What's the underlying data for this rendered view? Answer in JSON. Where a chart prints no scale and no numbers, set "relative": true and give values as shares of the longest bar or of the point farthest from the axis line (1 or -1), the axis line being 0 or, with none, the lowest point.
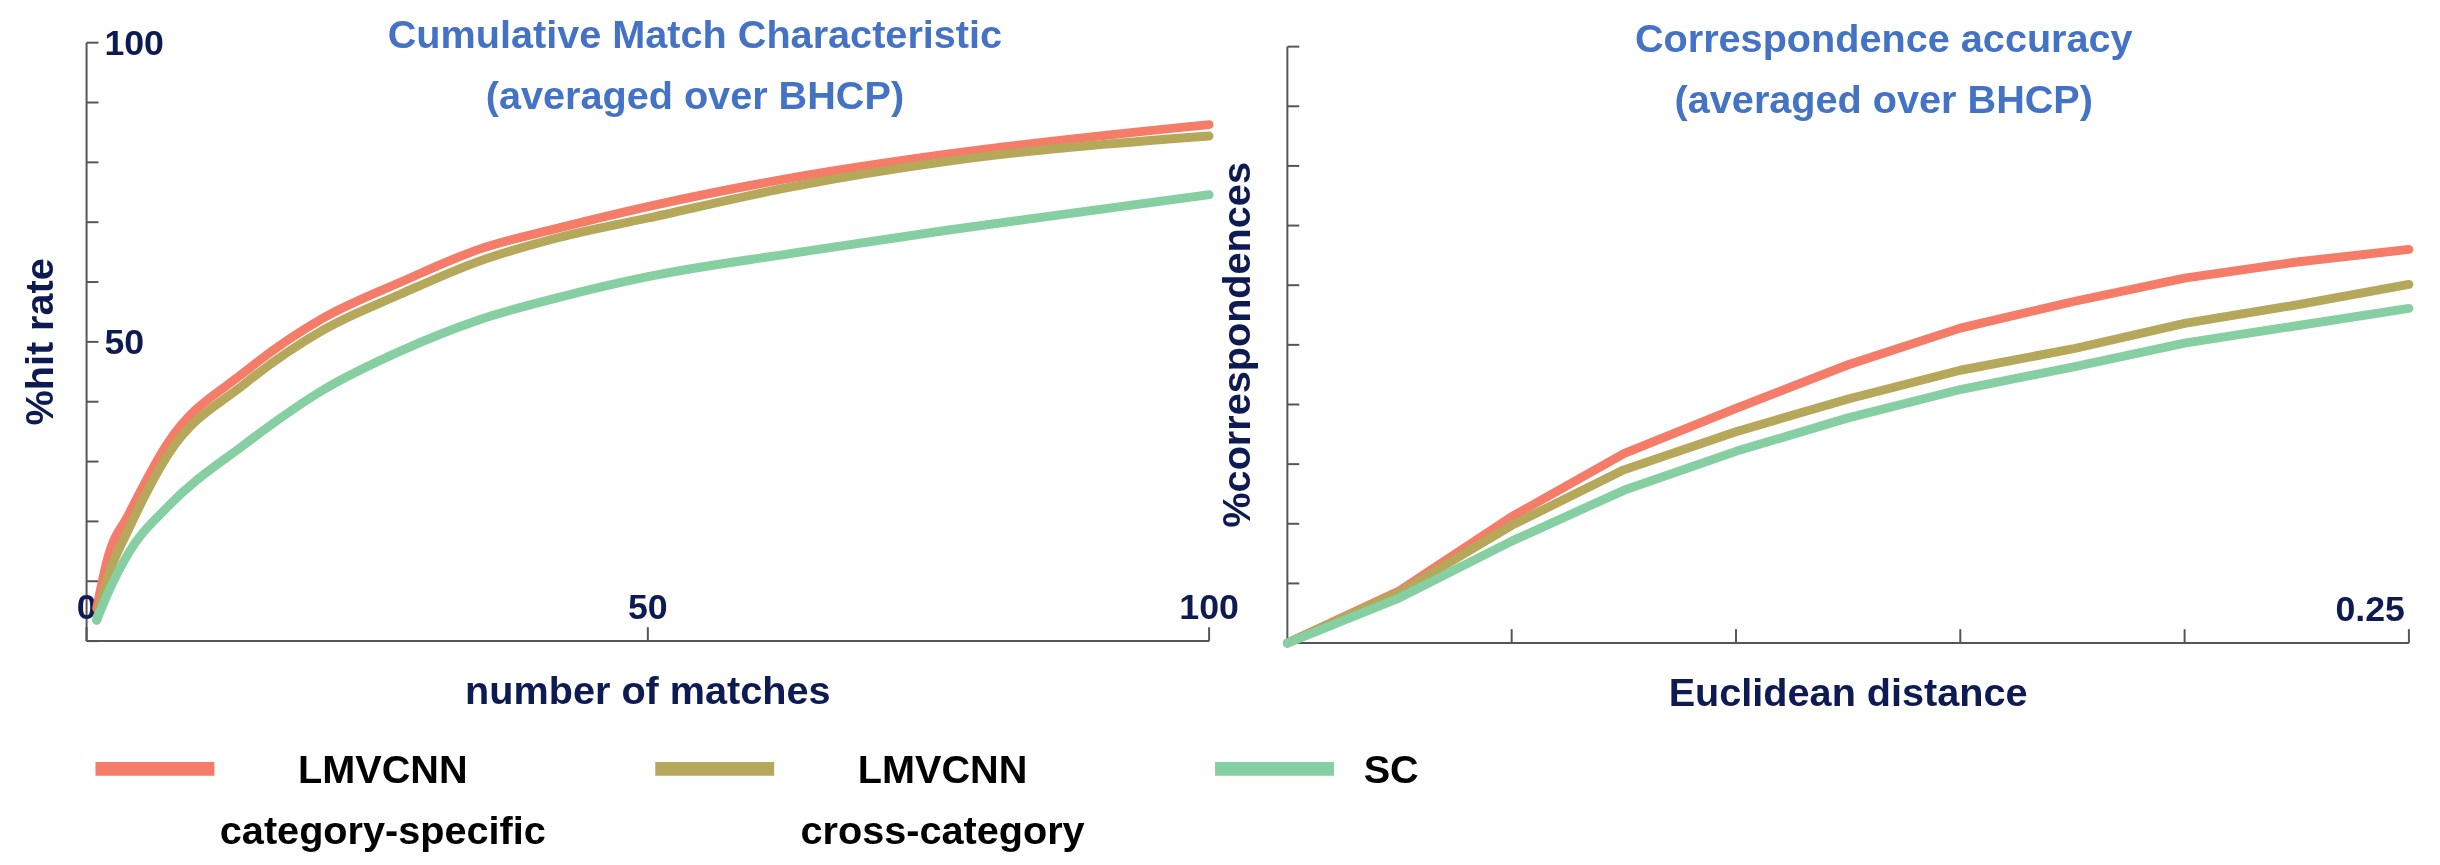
{
  "chart_data": [
    {
      "type": "line",
      "title": "Cumulative Match Characteristic",
      "subtitle": "(averaged over BHCP)",
      "xlabel": "number of matches",
      "ylabel": "%hit rate",
      "x": [
        0.9,
        1.9,
        3.7,
        7.2,
        14.1,
        21.1,
        28,
        35,
        42,
        50,
        62.8,
        76.8,
        100
      ],
      "xlim": [
        0,
        100
      ],
      "xticks": [
        0,
        50,
        100
      ],
      "ylim": [
        0,
        100
      ],
      "yticks": [
        {
          "value": 0,
          "label": null
        },
        {
          "value": 10,
          "label": null
        },
        {
          "value": 20,
          "label": null
        },
        {
          "value": 30,
          "label": null
        },
        {
          "value": 40,
          "label": null
        },
        50,
        {
          "value": 60,
          "label": null
        },
        {
          "value": 70,
          "label": null
        },
        {
          "value": 80,
          "label": null
        },
        {
          "value": 90,
          "label": null
        },
        100
      ],
      "legend": "bottom",
      "marker": "none",
      "line_style": "solid",
      "grid": false,
      "series": [
        {
          "name": "LMVCNN category-specific",
          "color": "#f47c68",
          "values": [
            5.5,
            14,
            21,
            33,
            45,
            54,
            60,
            65.5,
            69,
            72.6,
            77.4,
            81.4,
            86.3
          ]
        },
        {
          "name": "LMVCNN cross-category",
          "color": "#b5a85a",
          "values": [
            3.5,
            10.7,
            18.5,
            31,
            43,
            52,
            58,
            63.5,
            67.4,
            70.7,
            75.9,
            80.2,
            84.4
          ]
        },
        {
          "name": "SC",
          "color": "#86cfa3",
          "values": [
            3.5,
            8,
            14.6,
            22.4,
            32.9,
            42,
            48.5,
            53.7,
            57.4,
            60.9,
            64.8,
            68.7,
            74.6
          ]
        }
      ]
    },
    {
      "type": "line",
      "title": "Correspondence accuracy",
      "subtitle": "(averaged over BHCP)",
      "xlabel": "Euclidean distance",
      "ylabel": "%correspondences",
      "relative": true,
      "categories": [
        null,
        null,
        null,
        null,
        null,
        null,
        null,
        null,
        null,
        null,
        null
      ],
      "annotations": [
        "0.25"
      ],
      "marker": "none",
      "line_style": "solid",
      "grid": false,
      "series": [
        {
          "color": "#f47c68",
          "values": [
            0,
            0.133,
            0.321,
            0.481,
            0.596,
            0.707,
            0.8,
            0.867,
            0.927,
            0.968,
            1
          ]
        },
        {
          "color": "#b5a85a",
          "values": [
            0,
            0.129,
            0.299,
            0.44,
            0.537,
            0.62,
            0.693,
            0.747,
            0.812,
            0.859,
            0.911
          ]
        },
        {
          "color": "#86cfa3",
          "values": [
            0,
            0.115,
            0.259,
            0.388,
            0.487,
            0.572,
            0.644,
            0.701,
            0.762,
            0.806,
            0.85
          ]
        }
      ]
    }
  ]
}
